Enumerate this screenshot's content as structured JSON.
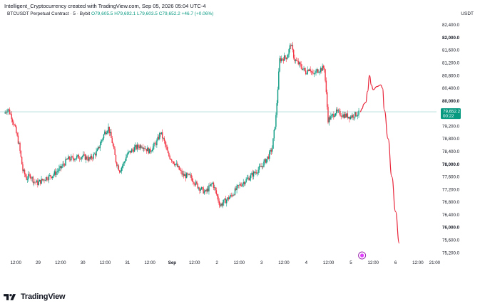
{
  "header": {
    "attribution": "Intelligent_Cryptocurrency created with TradingView.com, Sep 05, 2026 05:04 UTC-4"
  },
  "symbol": {
    "name": "BTCUSDT Perpetual Contract · 5 · Bybit",
    "open": "O79,605.5",
    "high": "H79,692.1",
    "low": "L79,603.5",
    "close": "C79,652.2",
    "change": "+46.7 (+0.06%)"
  },
  "currency": "USDT",
  "price_tag": {
    "price": "79,652.2",
    "countdown": "00:22"
  },
  "footer": {
    "brand": "TradingView"
  },
  "colors": {
    "up": "#089981",
    "down": "#f23645",
    "projection": "#e8263b",
    "hline": "#26a69a"
  },
  "chart_data": {
    "type": "line",
    "title": "BTCUSDT Perpetual Contract · 5 · Bybit",
    "ylim": [
      75000,
      82600
    ],
    "y_ticks": [
      "82,400.0",
      "82,000.0",
      "81,600.0",
      "81,200.0",
      "80,800.0",
      "80,400.0",
      "80,000.0",
      "79,600.0",
      "79,200.0",
      "78,800.0",
      "78,400.0",
      "78,000.0",
      "77,600.0",
      "77,200.0",
      "76,800.0",
      "76,400.0",
      "76,000.0",
      "75,600.0",
      "75,200.0"
    ],
    "bold_ticks": [
      "82,000.0",
      "80,000.0",
      "78,000.0",
      "76,000.0"
    ],
    "x_ticks": [
      "12:00",
      "29",
      "12:00",
      "30",
      "12:00",
      "31",
      "12:00",
      "Sep",
      "12:00",
      "2",
      "12:00",
      "3",
      "12:00",
      "4",
      "12:00",
      "5",
      "12:00",
      "6",
      "12:00",
      "21:00"
    ],
    "horizontal_line": 79652.2,
    "price_path": [
      [
        "Aug 28 06:00",
        79600
      ],
      [
        "Aug 28 08:00",
        79750
      ],
      [
        "Aug 28 10:00",
        79500
      ],
      [
        "Aug 28 12:00",
        79100
      ],
      [
        "Aug 28 14:00",
        78600
      ],
      [
        "Aug 28 16:00",
        77800
      ],
      [
        "Aug 28 18:00",
        77550
      ],
      [
        "Aug 28 20:00",
        77650
      ],
      [
        "Aug 28 22:00",
        77450
      ],
      [
        "Aug 29 00:00",
        77400
      ],
      [
        "Aug 29 04:00",
        77550
      ],
      [
        "Aug 29 08:00",
        77650
      ],
      [
        "Aug 29 12:00",
        77850
      ],
      [
        "Aug 29 16:00",
        78150
      ],
      [
        "Aug 29 20:00",
        78200
      ],
      [
        "Aug 30 00:00",
        78250
      ],
      [
        "Aug 30 04:00",
        78150
      ],
      [
        "Aug 30 08:00",
        78400
      ],
      [
        "Aug 30 12:00",
        79000
      ],
      [
        "Aug 30 14:00",
        79150
      ],
      [
        "Aug 30 16:00",
        78700
      ],
      [
        "Aug 30 18:00",
        78100
      ],
      [
        "Aug 30 20:00",
        77800
      ],
      [
        "Aug 30 22:00",
        78000
      ],
      [
        "Aug 31 00:00",
        78300
      ],
      [
        "Aug 31 04:00",
        78500
      ],
      [
        "Aug 31 08:00",
        78600
      ],
      [
        "Aug 31 12:00",
        78400
      ],
      [
        "Aug 31 16:00",
        78700
      ],
      [
        "Aug 31 18:00",
        79000
      ],
      [
        "Aug 31 20:00",
        78700
      ],
      [
        "Aug 31 22:00",
        78300
      ],
      [
        "Sep 01 02:00",
        78000
      ],
      [
        "Sep 01 06:00",
        77650
      ],
      [
        "Sep 01 10:00",
        77600
      ],
      [
        "Sep 01 14:00",
        77300
      ],
      [
        "Sep 01 18:00",
        77100
      ],
      [
        "Sep 01 22:00",
        77400
      ],
      [
        "Sep 02 00:00",
        77050
      ],
      [
        "Sep 02 02:00",
        76700
      ],
      [
        "Sep 02 04:00",
        76800
      ],
      [
        "Sep 02 08:00",
        77000
      ],
      [
        "Sep 02 12:00",
        77300
      ],
      [
        "Sep 02 16:00",
        77500
      ],
      [
        "Sep 02 20:00",
        77700
      ],
      [
        "Sep 03 00:00",
        77900
      ],
      [
        "Sep 03 04:00",
        78250
      ],
      [
        "Sep 03 06:00",
        78500
      ],
      [
        "Sep 03 08:00",
        79500
      ],
      [
        "Sep 03 10:00",
        81300
      ],
      [
        "Sep 03 14:00",
        81400
      ],
      [
        "Sep 03 16:00",
        81800
      ],
      [
        "Sep 03 18:00",
        81300
      ],
      [
        "Sep 03 22:00",
        81050
      ],
      [
        "Sep 04 00:00",
        80900
      ],
      [
        "Sep 04 02:00",
        81050
      ],
      [
        "Sep 04 04:00",
        80800
      ],
      [
        "Sep 04 06:00",
        80950
      ],
      [
        "Sep 04 08:00",
        81000
      ],
      [
        "Sep 04 10:00",
        81050
      ],
      [
        "Sep 04 12:00",
        79400
      ],
      [
        "Sep 04 14:00",
        79500
      ],
      [
        "Sep 04 16:00",
        79650
      ],
      [
        "Sep 04 20:00",
        79550
      ],
      [
        "Sep 05 00:00",
        79500
      ],
      [
        "Sep 05 04:00",
        79600
      ]
    ],
    "projection_path": [
      [
        "Sep 05 05:00",
        79652
      ],
      [
        "Sep 05 06:00",
        79750
      ],
      [
        "Sep 05 07:00",
        79900
      ],
      [
        "Sep 05 08:00",
        79950
      ],
      [
        "Sep 05 09:00",
        80300
      ],
      [
        "Sep 05 10:00",
        80800
      ],
      [
        "Sep 05 11:00",
        80500
      ],
      [
        "Sep 05 12:00",
        80350
      ],
      [
        "Sep 05 14:00",
        80450
      ],
      [
        "Sep 05 16:00",
        80500
      ],
      [
        "Sep 05 17:00",
        80400
      ],
      [
        "Sep 05 18:00",
        79700
      ],
      [
        "Sep 05 20:00",
        78800
      ],
      [
        "Sep 05 22:00",
        77600
      ],
      [
        "Sep 06 00:00",
        76500
      ],
      [
        "Sep 06 02:00",
        75500
      ]
    ]
  }
}
